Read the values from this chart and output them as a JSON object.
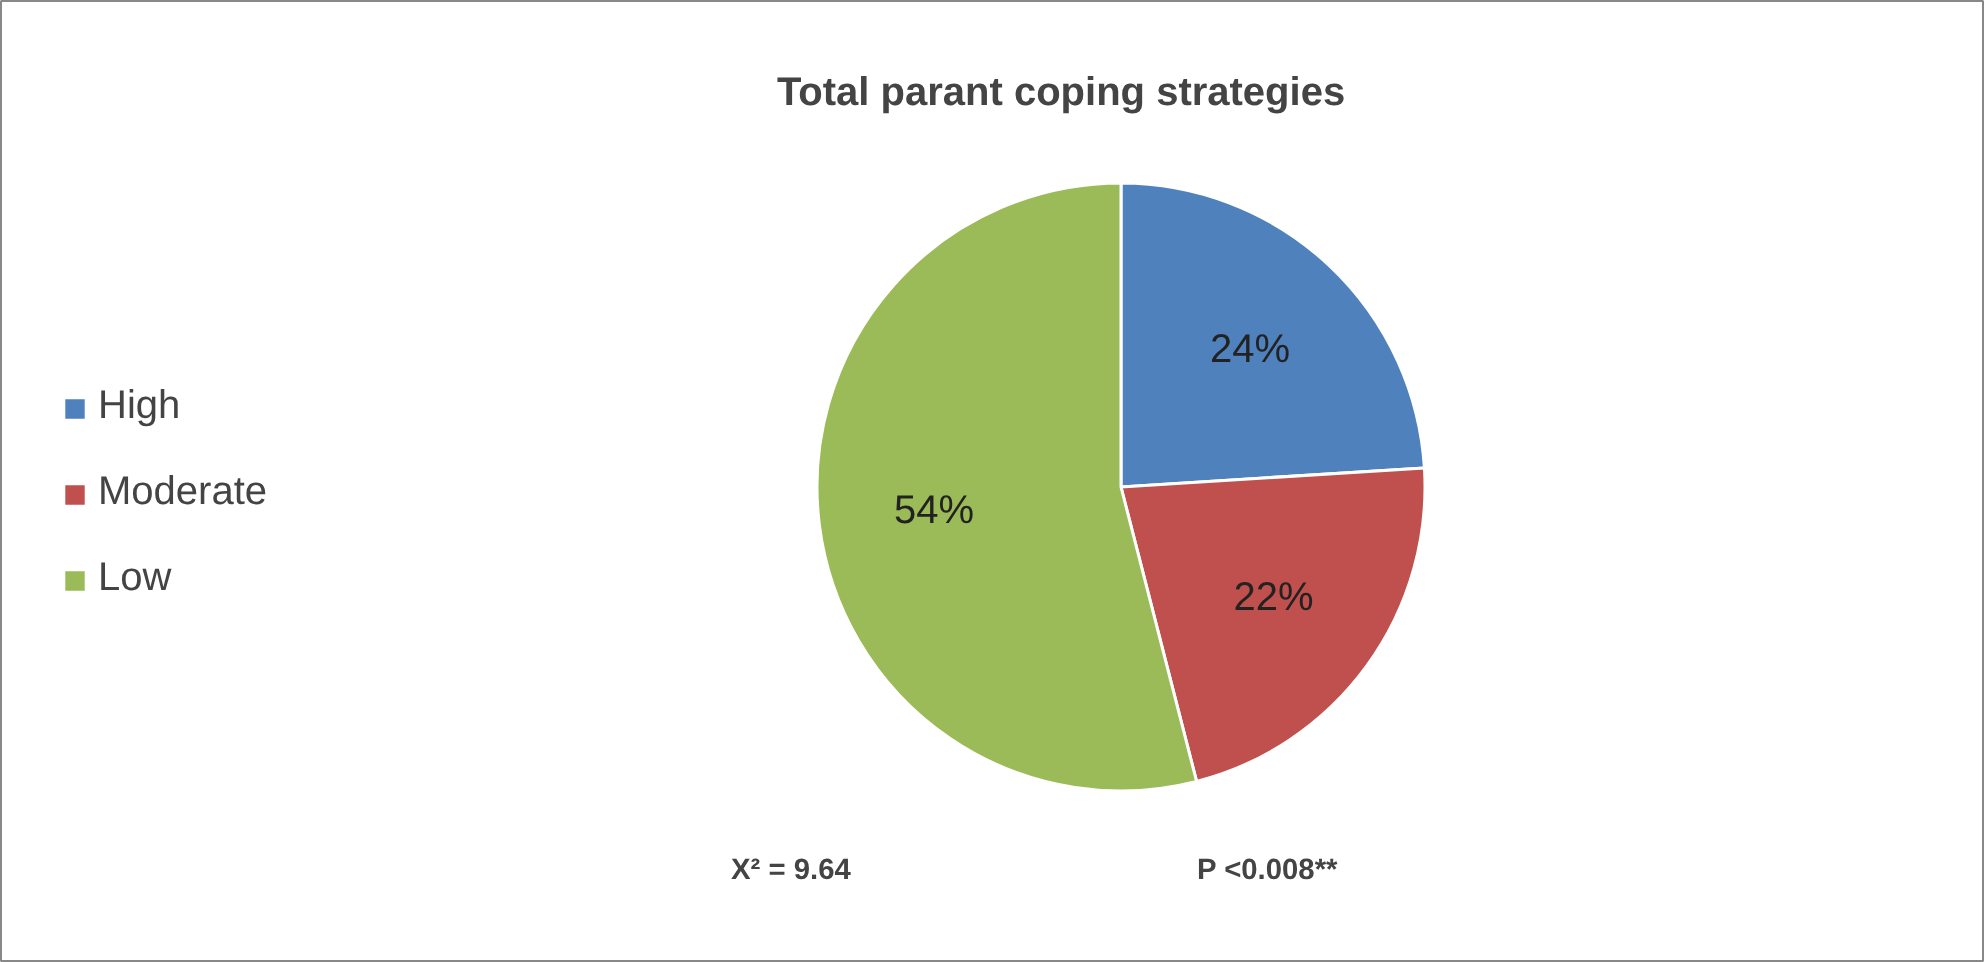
{
  "chart_data": {
    "type": "pie",
    "title": "Total parant coping strategies",
    "categories": [
      "High",
      "Moderate",
      "Low"
    ],
    "values": [
      24,
      22,
      54
    ],
    "value_labels": [
      "24%",
      "22%",
      "54%"
    ],
    "colors": [
      "#4f81bd",
      "#c0504d",
      "#9bbb59"
    ],
    "legend": "left",
    "annotations": [
      "X² = 9.64",
      "P <0.008**"
    ]
  }
}
